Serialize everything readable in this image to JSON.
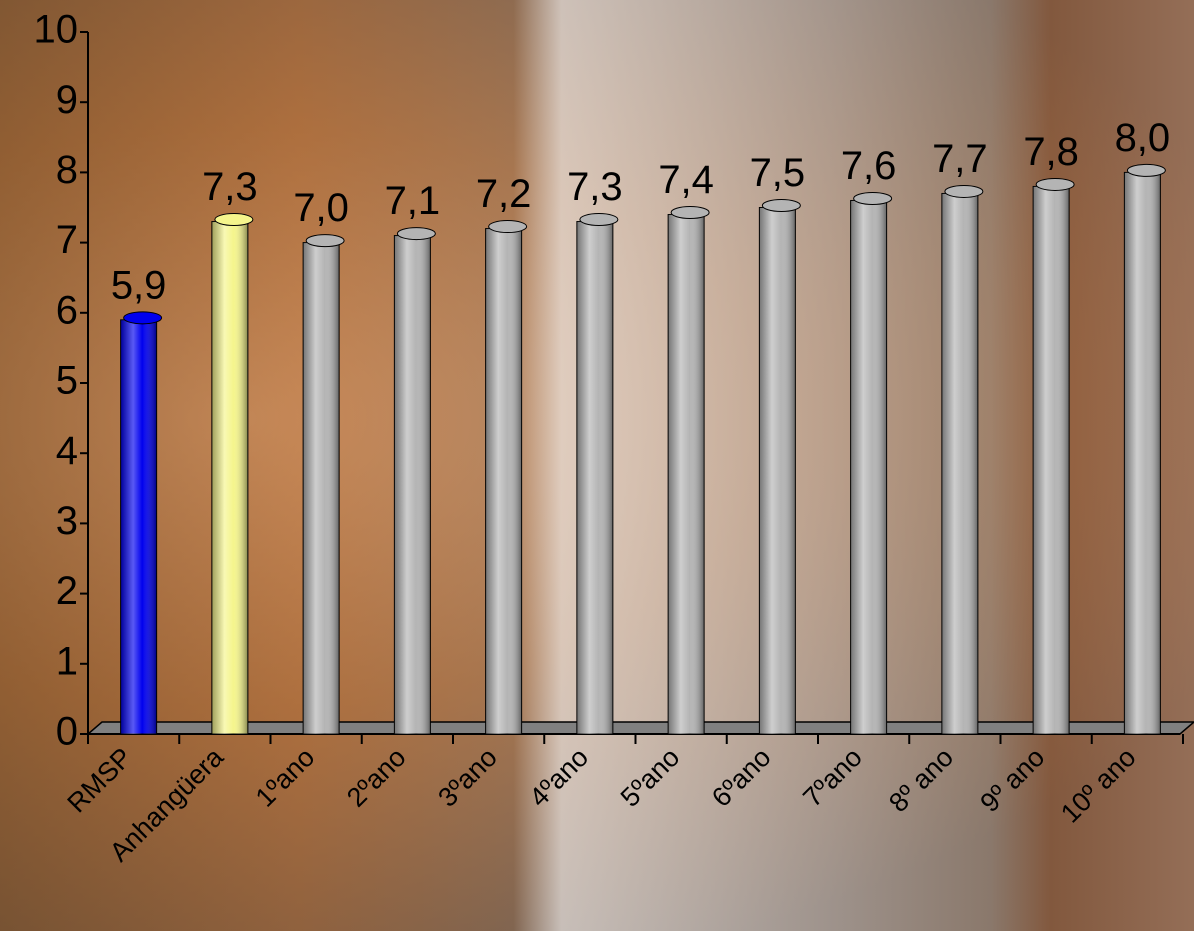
{
  "chart_data": {
    "type": "bar",
    "categories": [
      "RMSP",
      "Anhangüera",
      "1ºano",
      "2ºano",
      "3ºano",
      "4ºano",
      "5ºano",
      "6ºano",
      "7ºano",
      "8º ano",
      "9º ano",
      "10º ano"
    ],
    "values": [
      5.9,
      7.3,
      7.0,
      7.1,
      7.2,
      7.3,
      7.4,
      7.5,
      7.6,
      7.7,
      7.8,
      8.0
    ],
    "value_labels": [
      "5,9",
      "7,3",
      "7,0",
      "7,1",
      "7,2",
      "7,3",
      "7,4",
      "7,5",
      "7,6",
      "7,7",
      "7,8",
      "8,0"
    ],
    "colors": [
      "#0000ee",
      "#f5f58c",
      "#b4b4b4",
      "#b4b4b4",
      "#b4b4b4",
      "#b4b4b4",
      "#b4b4b4",
      "#b4b4b4",
      "#b4b4b4",
      "#b4b4b4",
      "#b4b4b4",
      "#b4b4b4"
    ],
    "ylim": [
      0,
      10
    ],
    "yticks": [
      0,
      1,
      2,
      3,
      4,
      5,
      6,
      7,
      8,
      9,
      10
    ],
    "grid": false
  }
}
